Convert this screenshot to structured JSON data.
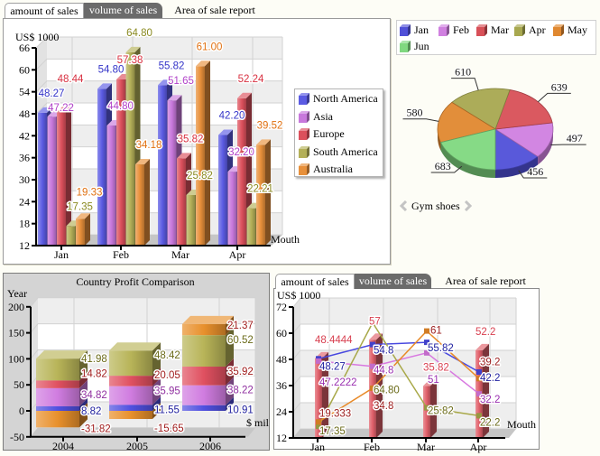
{
  "top_left_panel": {
    "tabs": [
      {
        "label": "amount of sales",
        "state": "active"
      },
      {
        "label": "volume of sales",
        "state": "inactive"
      },
      {
        "label": "Area of sale report",
        "state": "link"
      }
    ]
  },
  "pie_panel": {
    "title": "Gym shoes",
    "prev_icon": "chevron-left-icon",
    "next_icon": "chevron-right-icon"
  },
  "bottom_right_panel": {
    "tabs": [
      {
        "label": "amount of sales",
        "state": "active"
      },
      {
        "label": "volume of sales",
        "state": "inactive"
      },
      {
        "label": "Area of sale report",
        "state": "link"
      }
    ]
  },
  "chart_data": [
    {
      "type": "bar",
      "variant": "3d-grouped",
      "title": "",
      "ylabel": "US$ 1000",
      "xlabel": "Mouth",
      "categories": [
        "Jan",
        "Feb",
        "Mar",
        "Apr"
      ],
      "ylim": [
        12,
        66
      ],
      "yticks": [
        12,
        18,
        24,
        30,
        36,
        42,
        48,
        54,
        60,
        66
      ],
      "grid": true,
      "legend": "right",
      "series": [
        {
          "name": "North America",
          "color": "#5b5be3",
          "label_color": "#3434c8",
          "values": [
            48.27,
            54.8,
            55.82,
            42.2
          ],
          "labels": [
            "48.27",
            "54.80",
            "55.82",
            "42.20"
          ]
        },
        {
          "name": "Asia",
          "color": "#c878dc",
          "label_color": "#b040c8",
          "values": [
            47.22,
            44.8,
            51.65,
            32.2
          ],
          "labels": [
            "47.22",
            "44.80",
            "51.65",
            "32.20"
          ]
        },
        {
          "name": "Europe",
          "color": "#dc505c",
          "label_color": "#d83040",
          "values": [
            48.44,
            57.38,
            35.82,
            52.24
          ],
          "labels": [
            "48.44",
            "57.38",
            "35.82",
            "52.24"
          ]
        },
        {
          "name": "South America",
          "color": "#b4b058",
          "label_color": "#8a8a20",
          "values": [
            17.35,
            64.8,
            25.82,
            22.21
          ],
          "labels": [
            "17.35",
            "64.80",
            "25.82",
            "22.21"
          ]
        },
        {
          "name": "Australia",
          "color": "#e8903a",
          "label_color": "#e07010",
          "values": [
            19.33,
            34.18,
            61.0,
            39.52
          ],
          "labels": [
            "19.33",
            "34.18",
            "61.00",
            "39.52"
          ]
        }
      ]
    },
    {
      "type": "pie",
      "variant": "3d",
      "title": "Gym shoes",
      "categories": [
        "Jan",
        "Feb",
        "Mar",
        "Apr",
        "May",
        "Jun"
      ],
      "values": [
        456,
        497,
        639,
        610,
        580,
        683
      ],
      "value_labels": [
        "456",
        "497",
        "639",
        "610",
        "580",
        "683"
      ],
      "colors": [
        "#5050d8",
        "#d080e0",
        "#d85058",
        "#a8a850",
        "#e08830",
        "#80d880"
      ],
      "legend": "top"
    },
    {
      "type": "bar",
      "variant": "3d-stacked",
      "title": "Country Profit Comparison",
      "ylabel": "Year",
      "xlabel": "$ mil",
      "categories": [
        "2004",
        "2005",
        "2006"
      ],
      "ylim": [
        -50,
        200
      ],
      "yticks": [
        -50,
        0,
        50,
        100,
        150,
        200
      ],
      "grid": true,
      "legend": "none",
      "series": [
        {
          "color": "#5050e0",
          "label_color": "#1c1c9c",
          "values": [
            8.82,
            11.55,
            10.91
          ],
          "labels": [
            "8.82",
            "11.55",
            "10.91"
          ]
        },
        {
          "color": "#d07ce0",
          "label_color": "#9030a0",
          "values": [
            34.82,
            35.95,
            38.22
          ],
          "labels": [
            "34.82",
            "35.95",
            "38.22"
          ]
        },
        {
          "color": "#e05060",
          "label_color": "#a01c1c",
          "values": [
            14.82,
            20.05,
            35.92
          ],
          "labels": [
            "14.82",
            "20.05",
            "35.92"
          ]
        },
        {
          "color": "#b8b458",
          "label_color": "#6a6a18",
          "values": [
            41.98,
            48.42,
            60.52
          ],
          "labels": [
            "41.98",
            "48.42",
            "60.52"
          ]
        },
        {
          "color": "#e8902c",
          "label_color": "#a01c1c",
          "values": [
            -31.82,
            -15.65,
            21.37
          ],
          "labels": [
            "-31.82",
            "-15.65",
            "21.37"
          ]
        }
      ]
    },
    {
      "type": "line",
      "variant": "3d-bar-line-combo",
      "title": "",
      "ylabel": "US$ 1000",
      "xlabel": "Mouth",
      "categories": [
        "Jan",
        "Feb",
        "Mar",
        "Apr"
      ],
      "ylim": [
        12,
        72
      ],
      "yticks": [
        12,
        24,
        36,
        48,
        60,
        72
      ],
      "grid": true,
      "legend": "none",
      "bar_series": {
        "type": "bar",
        "color": "#e0606a",
        "label_color": "#d84050",
        "values": [
          48.4444,
          57,
          35.82,
          52.2
        ],
        "labels": [
          "48.4444",
          "57",
          "35.82",
          "52.2"
        ]
      },
      "line_series": [
        {
          "color": "#4848e0",
          "label_color": "#2020a0",
          "values": [
            48.27,
            54.8,
            55.82,
            42.2
          ],
          "labels": [
            "48.27",
            "54.8",
            "55.82",
            "42.2"
          ]
        },
        {
          "color": "#d878e0",
          "label_color": "#9a30b0",
          "values": [
            47.2222,
            44.8,
            51,
            32.2
          ],
          "labels": [
            "47.2222",
            "44.8",
            "51",
            "32.2"
          ]
        },
        {
          "color": "#a8a848",
          "label_color": "#6a6a18",
          "values": [
            17.35,
            64.8,
            25.82,
            22.2
          ],
          "labels": [
            "17.35",
            "64.80",
            "25.82",
            "22.2"
          ]
        },
        {
          "color": "#e88a28",
          "label_color": "#9b1b1b",
          "values": [
            19.333,
            34.8,
            61,
            39.2
          ],
          "labels": [
            "19.333",
            "34.8",
            "61",
            "39.2"
          ]
        }
      ]
    }
  ]
}
